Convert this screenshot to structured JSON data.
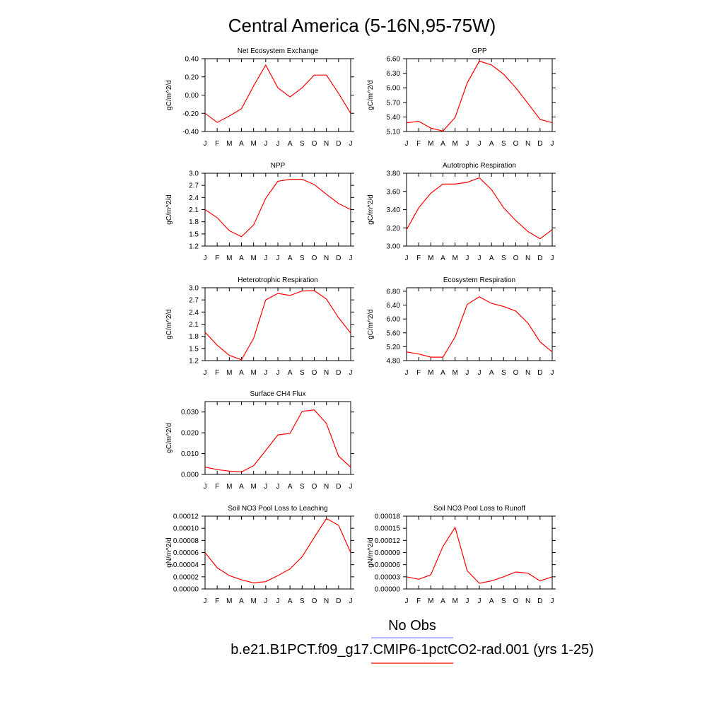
{
  "title": "Central America (5-16N,95-75W)",
  "legend": {
    "obs_label": "No Obs",
    "obs_color": "#8a8aff",
    "model_label": "b.e21.B1PCT.f09_g17.CMIP6-1pctCO2-rad.001 (yrs 1-25)",
    "model_color": "#ff0000"
  },
  "months": [
    "J",
    "F",
    "M",
    "A",
    "M",
    "J",
    "J",
    "A",
    "S",
    "O",
    "N",
    "D",
    "J"
  ],
  "chart_data": [
    {
      "type": "line",
      "title": "Net Ecosystem Exchange",
      "ylabel": "gC/m^2/d",
      "ylim": [
        -0.4,
        0.4
      ],
      "yticks": [
        "0.40",
        "0.20",
        "0.00",
        "-0.20",
        "-0.40"
      ],
      "ytick_values": [
        0.4,
        0.2,
        0,
        -0.2,
        -0.4
      ],
      "values": [
        -0.2,
        -0.3,
        -0.23,
        -0.15,
        0.1,
        0.33,
        0.08,
        -0.02,
        0.08,
        0.22,
        0.22,
        0.02,
        -0.2
      ]
    },
    {
      "type": "line",
      "title": "GPP",
      "ylabel": "gC/m^2/d",
      "ylim": [
        5.1,
        6.6
      ],
      "yticks": [
        "6.60",
        "6.30",
        "6.00",
        "5.70",
        "5.40",
        "5.10"
      ],
      "ytick_values": [
        6.6,
        6.3,
        6.0,
        5.7,
        5.4,
        5.1
      ],
      "values": [
        5.28,
        5.31,
        5.17,
        5.11,
        5.39,
        6.1,
        6.55,
        6.47,
        6.28,
        6.0,
        5.68,
        5.35,
        5.28
      ]
    },
    {
      "type": "line",
      "title": "NPP",
      "ylabel": "gC/m^2/d",
      "ylim": [
        1.2,
        3.0
      ],
      "yticks": [
        "3.0",
        "2.7",
        "2.4",
        "2.1",
        "1.8",
        "1.5",
        "1.2"
      ],
      "ytick_values": [
        3.0,
        2.7,
        2.4,
        2.1,
        1.8,
        1.5,
        1.2
      ],
      "values": [
        2.1,
        1.9,
        1.58,
        1.43,
        1.72,
        2.38,
        2.8,
        2.85,
        2.85,
        2.72,
        2.48,
        2.25,
        2.1
      ]
    },
    {
      "type": "line",
      "title": "Autotrophic Respiration",
      "ylabel": "gC/m^2/d",
      "ylim": [
        3.0,
        3.8
      ],
      "yticks": [
        "3.80",
        "3.60",
        "3.40",
        "3.20",
        "3.00"
      ],
      "ytick_values": [
        3.8,
        3.6,
        3.4,
        3.2,
        3.0
      ],
      "values": [
        3.18,
        3.42,
        3.58,
        3.68,
        3.68,
        3.7,
        3.75,
        3.62,
        3.42,
        3.28,
        3.16,
        3.08,
        3.18
      ]
    },
    {
      "type": "line",
      "title": "Heterotrophic Respiration",
      "ylabel": "gC/m^2/d",
      "ylim": [
        1.2,
        3.0
      ],
      "yticks": [
        "3.0",
        "2.7",
        "2.4",
        "2.1",
        "1.8",
        "1.5",
        "1.2"
      ],
      "ytick_values": [
        3.0,
        2.7,
        2.4,
        2.1,
        1.8,
        1.5,
        1.2
      ],
      "values": [
        1.9,
        1.58,
        1.33,
        1.22,
        1.75,
        2.7,
        2.86,
        2.81,
        2.92,
        2.93,
        2.72,
        2.26,
        1.88
      ]
    },
    {
      "type": "line",
      "title": "Ecosystem Respiration",
      "ylabel": "gC/m^2/d",
      "ylim": [
        4.8,
        6.9
      ],
      "yticks": [
        "6.80",
        "6.40",
        "6.00",
        "5.60",
        "5.20",
        "4.80"
      ],
      "ytick_values": [
        6.8,
        6.4,
        6.0,
        5.6,
        5.2,
        4.8
      ],
      "values": [
        5.05,
        4.99,
        4.9,
        4.9,
        5.48,
        6.42,
        6.64,
        6.45,
        6.36,
        6.23,
        5.88,
        5.34,
        5.05
      ]
    },
    {
      "type": "line",
      "title": "Surface CH4 Flux",
      "ylabel": "gC/m^2/d",
      "ylim": [
        0,
        0.035
      ],
      "yticks": [
        "0.030",
        "0.020",
        "0.010",
        "0.000"
      ],
      "ytick_values": [
        0.03,
        0.02,
        0.01,
        0
      ],
      "values": [
        0.0035,
        0.0023,
        0.0016,
        0.0012,
        0.0042,
        0.0115,
        0.019,
        0.0197,
        0.0303,
        0.031,
        0.0245,
        0.0088,
        0.0035
      ]
    },
    {
      "type": "line",
      "title": "Soil NO3 Pool Loss to Leaching",
      "ylabel": "gN/m^2/d",
      "ylim": [
        0,
        0.00012
      ],
      "yticks": [
        "0.00012",
        "0.00010",
        "0.00008",
        "0.00006",
        "0.00004",
        "0.00002",
        "0.00000"
      ],
      "ytick_values": [
        0.00012,
        0.0001,
        8e-05,
        6e-05,
        4e-05,
        2e-05,
        0
      ],
      "values": [
        6e-05,
        3.5e-05,
        2.2e-05,
        1.5e-05,
        1e-05,
        1.2e-05,
        2.2e-05,
        3.3e-05,
        5.3e-05,
        8.5e-05,
        0.000116,
        0.000105,
        6e-05
      ]
    },
    {
      "type": "line",
      "title": "Soil NO3 Pool Loss to Runoff",
      "ylabel": "gN/m^2/d",
      "ylim": [
        0,
        0.00018
      ],
      "yticks": [
        "0.00018",
        "0.00015",
        "0.00012",
        "0.00009",
        "0.00006",
        "0.00003",
        "0.00000"
      ],
      "ytick_values": [
        0.00018,
        0.00015,
        0.00012,
        9e-05,
        6e-05,
        3e-05,
        0
      ],
      "values": [
        3e-05,
        2.4e-05,
        3.5e-05,
        0.000105,
        0.000152,
        4.5e-05,
        1.4e-05,
        2e-05,
        3e-05,
        4.2e-05,
        3.9e-05,
        2e-05,
        3e-05
      ]
    }
  ]
}
